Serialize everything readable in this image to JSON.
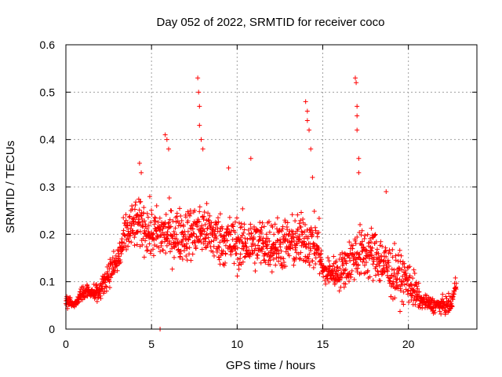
{
  "chart_data": {
    "type": "scatter",
    "title": "Day 052 of 2022, SRMTID for receiver coco",
    "xlabel": "GPS time / hours",
    "ylabel": "SRMTID / TECUs",
    "xlim": [
      0,
      24
    ],
    "ylim": [
      0,
      0.6
    ],
    "xticks": [
      0,
      5,
      10,
      15,
      20
    ],
    "xtick_labels": [
      "0",
      "5",
      "10",
      "15",
      "20"
    ],
    "yticks": [
      0,
      0.1,
      0.2,
      0.3,
      0.4,
      0.5,
      0.6
    ],
    "ytick_labels": [
      "0",
      "0.1",
      "0.2",
      "0.3",
      "0.4",
      "0.5",
      "0.6"
    ],
    "grid": true,
    "marker": "plus",
    "color": "#ff0000",
    "series": [
      {
        "name": "SRMTID",
        "trend": [
          [
            0.0,
            0.06
          ],
          [
            0.5,
            0.05
          ],
          [
            1.0,
            0.08
          ],
          [
            1.5,
            0.08
          ],
          [
            2.0,
            0.08
          ],
          [
            2.5,
            0.12
          ],
          [
            3.0,
            0.14
          ],
          [
            3.5,
            0.2
          ],
          [
            4.0,
            0.22
          ],
          [
            4.5,
            0.22
          ],
          [
            5.0,
            0.2
          ],
          [
            6.0,
            0.2
          ],
          [
            7.0,
            0.2
          ],
          [
            8.0,
            0.21
          ],
          [
            9.0,
            0.19
          ],
          [
            10.0,
            0.18
          ],
          [
            11.0,
            0.18
          ],
          [
            12.0,
            0.18
          ],
          [
            13.0,
            0.18
          ],
          [
            14.0,
            0.19
          ],
          [
            14.8,
            0.17
          ],
          [
            15.0,
            0.12
          ],
          [
            16.0,
            0.12
          ],
          [
            17.0,
            0.16
          ],
          [
            18.0,
            0.16
          ],
          [
            19.0,
            0.12
          ],
          [
            20.0,
            0.1
          ],
          [
            20.7,
            0.06
          ],
          [
            21.5,
            0.05
          ],
          [
            22.5,
            0.05
          ],
          [
            22.8,
            0.1
          ]
        ],
        "spread": [
          [
            0.0,
            0.015
          ],
          [
            2.0,
            0.02
          ],
          [
            2.5,
            0.03
          ],
          [
            3.5,
            0.05
          ],
          [
            5.0,
            0.06
          ],
          [
            9.0,
            0.06
          ],
          [
            14.8,
            0.06
          ],
          [
            15.0,
            0.03
          ],
          [
            16.0,
            0.04
          ],
          [
            17.0,
            0.06
          ],
          [
            19.0,
            0.06
          ],
          [
            20.5,
            0.04
          ],
          [
            20.7,
            0.015
          ],
          [
            22.8,
            0.02
          ]
        ],
        "spikes": [
          [
            4.3,
            0.35
          ],
          [
            4.4,
            0.33
          ],
          [
            5.8,
            0.41
          ],
          [
            5.9,
            0.4
          ],
          [
            6.0,
            0.38
          ],
          [
            7.7,
            0.53
          ],
          [
            7.75,
            0.5
          ],
          [
            7.8,
            0.47
          ],
          [
            7.8,
            0.43
          ],
          [
            7.9,
            0.4
          ],
          [
            8.0,
            0.38
          ],
          [
            9.5,
            0.34
          ],
          [
            10.8,
            0.36
          ],
          [
            14.0,
            0.48
          ],
          [
            14.1,
            0.46
          ],
          [
            14.1,
            0.44
          ],
          [
            14.2,
            0.42
          ],
          [
            14.3,
            0.38
          ],
          [
            14.4,
            0.32
          ],
          [
            16.9,
            0.53
          ],
          [
            16.95,
            0.52
          ],
          [
            17.0,
            0.47
          ],
          [
            17.0,
            0.45
          ],
          [
            17.0,
            0.42
          ],
          [
            17.1,
            0.36
          ],
          [
            17.1,
            0.33
          ],
          [
            18.7,
            0.29
          ],
          [
            5.5,
            0.0
          ]
        ],
        "n_points": 1700
      }
    ]
  }
}
